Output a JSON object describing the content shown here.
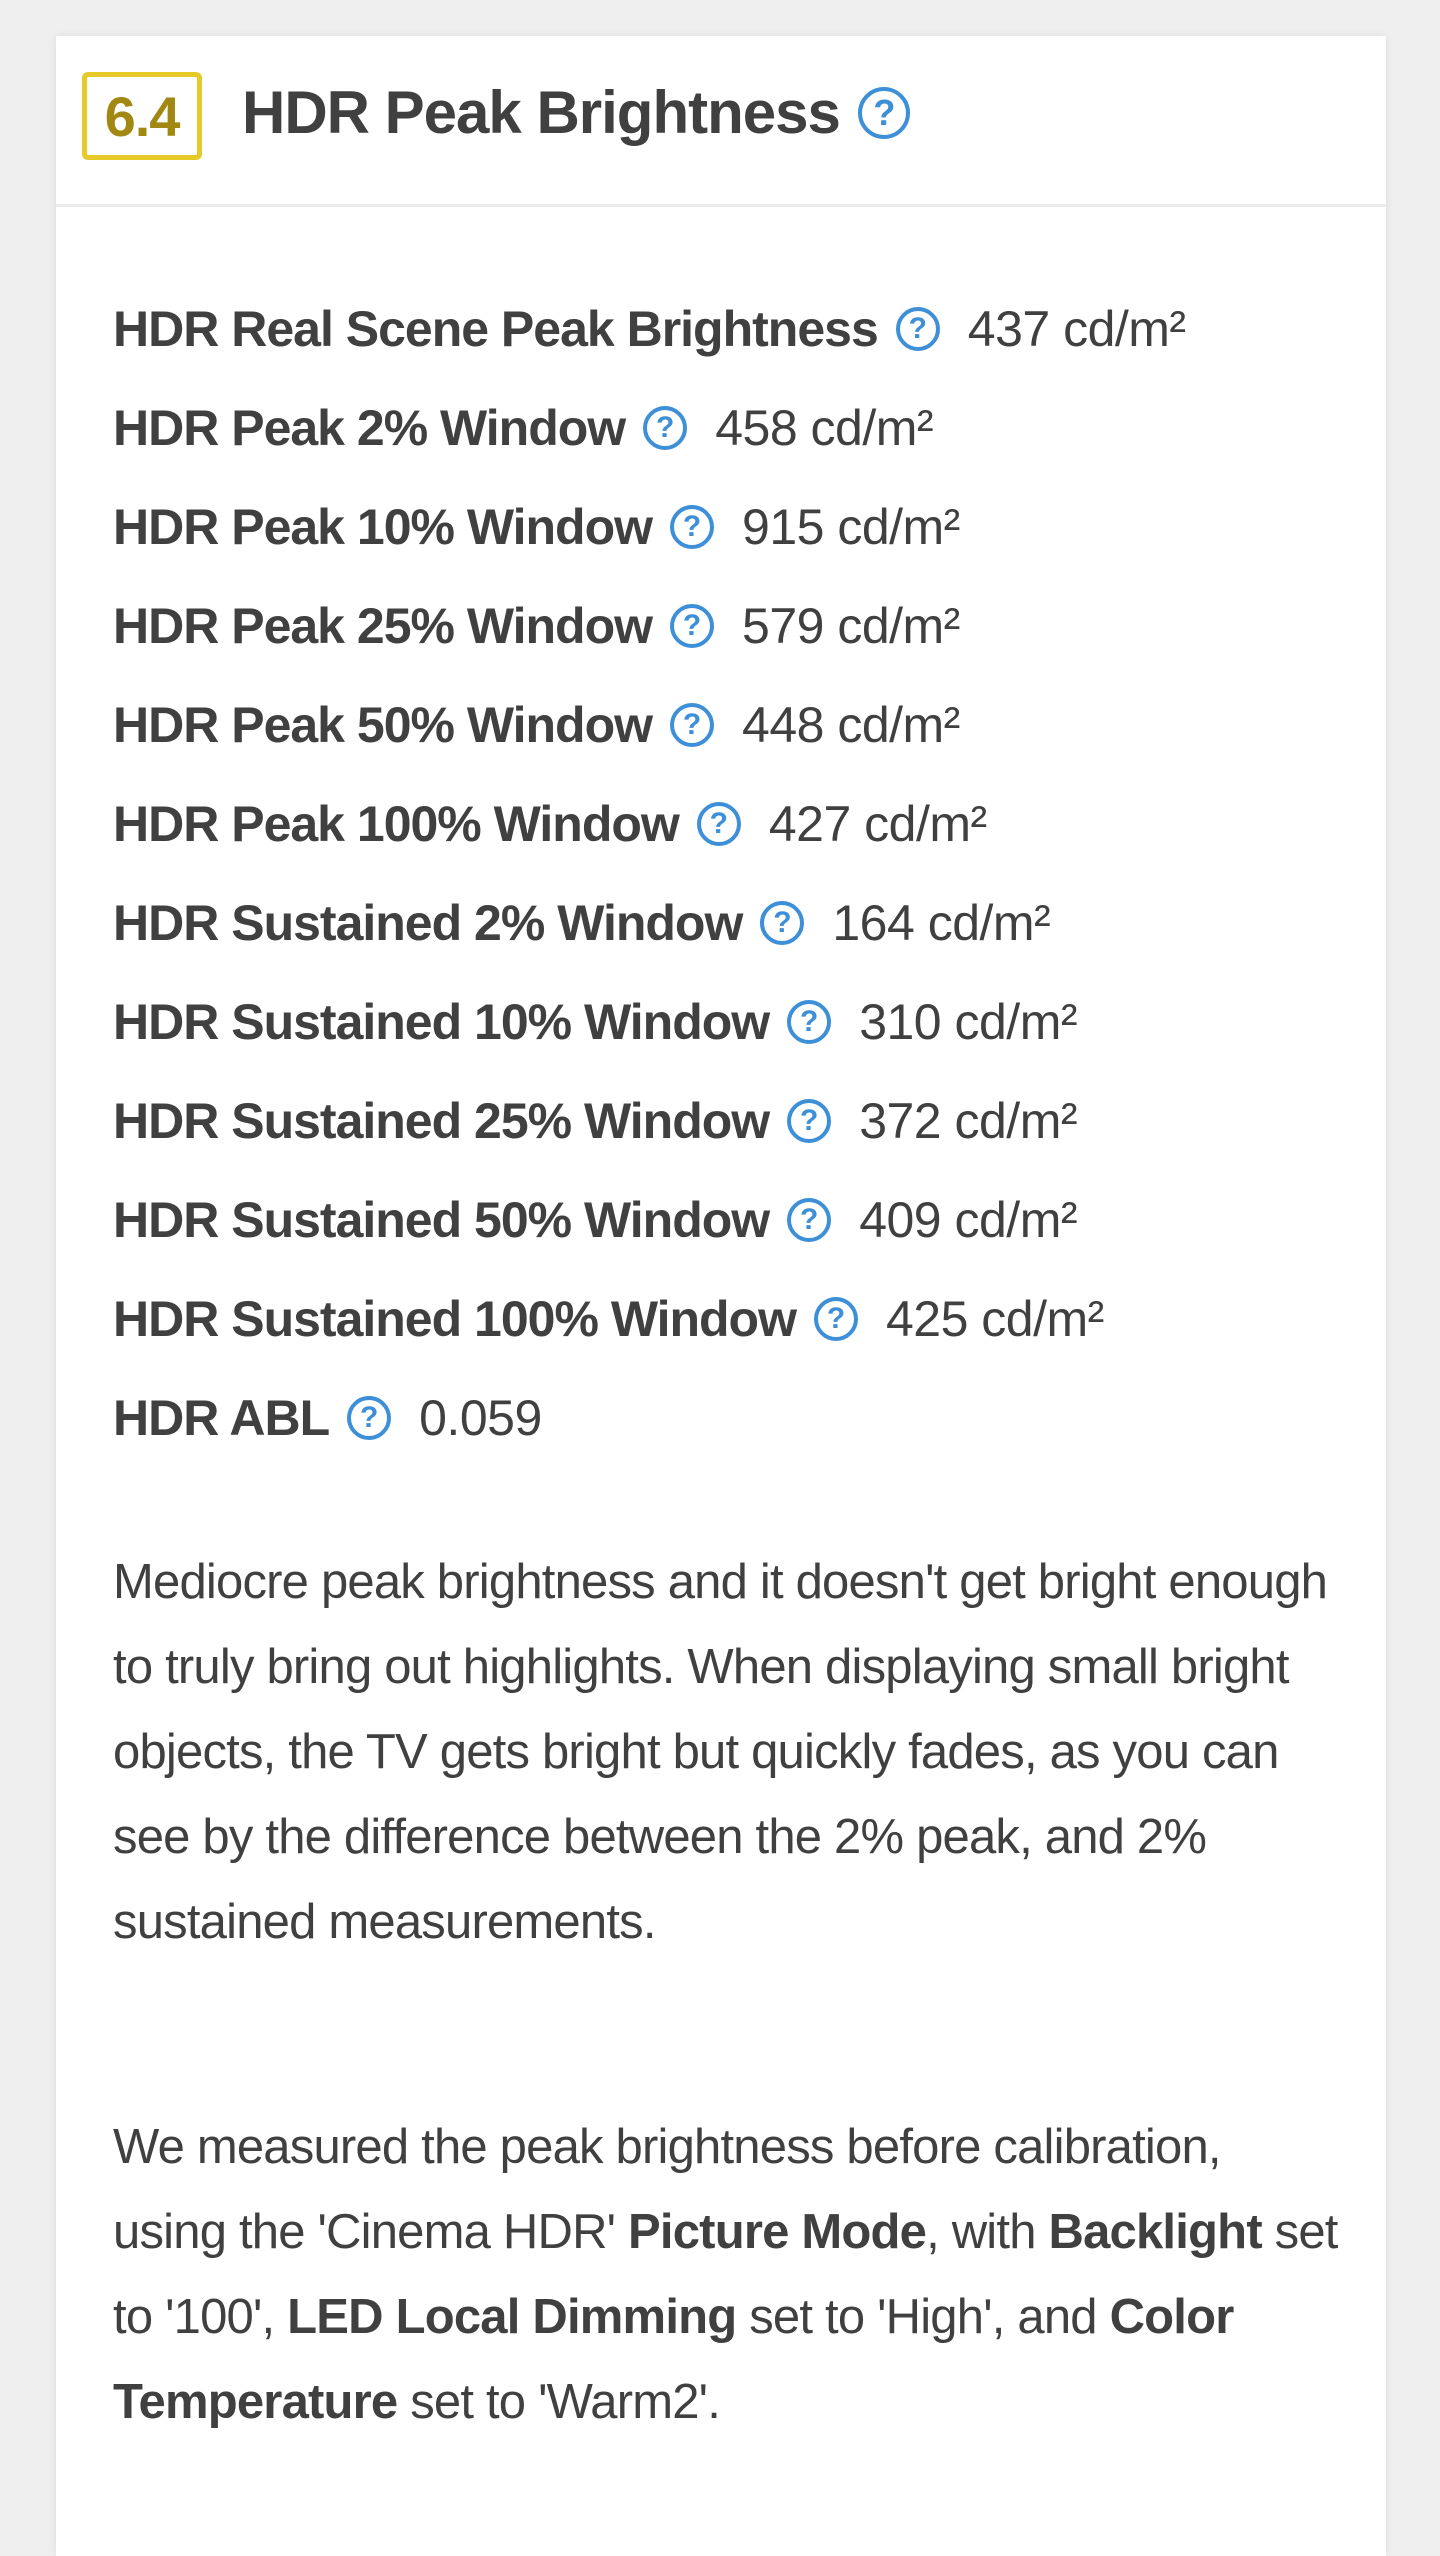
{
  "header": {
    "score": "6.4",
    "title": "HDR Peak Brightness",
    "score_color": "#e8c92a",
    "help_icon": "question-circle-icon"
  },
  "rows": [
    {
      "label": "HDR Real Scene Peak Brightness",
      "value": "437 cd/m²"
    },
    {
      "label": "HDR Peak 2% Window",
      "value": "458 cd/m²"
    },
    {
      "label": "HDR Peak 10% Window",
      "value": "915 cd/m²"
    },
    {
      "label": "HDR Peak 25% Window",
      "value": "579 cd/m²"
    },
    {
      "label": "HDR Peak 50% Window",
      "value": "448 cd/m²"
    },
    {
      "label": "HDR Peak 100% Window",
      "value": "427 cd/m²"
    },
    {
      "label": "HDR Sustained 2% Window",
      "value": "164 cd/m²"
    },
    {
      "label": "HDR Sustained 10% Window",
      "value": "310 cd/m²"
    },
    {
      "label": "HDR Sustained 25% Window",
      "value": "372 cd/m²"
    },
    {
      "label": "HDR Sustained 50% Window",
      "value": "409 cd/m²"
    },
    {
      "label": "HDR Sustained 100% Window",
      "value": "425 cd/m²"
    },
    {
      "label": "HDR ABL",
      "value": "0.059"
    }
  ],
  "paragraph1": "Mediocre peak brightness and it doesn't get bright enough to truly bring out highlights. When displaying small bright objects, the TV gets bright but quickly fades, as you can see by the difference between the 2% peak, and 2% sustained measurements.",
  "paragraph2": {
    "t1": "We measured the peak brightness before calibration, using the 'Cinema HDR' ",
    "b1": "Picture Mode",
    "t2": ", with ",
    "b2": "Backlight",
    "t3": " set to '100', ",
    "b3": "LED Local Dimming",
    "t4": " set to 'High', and ",
    "b4": "Color Temperature",
    "t5": " set to 'Warm2'."
  }
}
